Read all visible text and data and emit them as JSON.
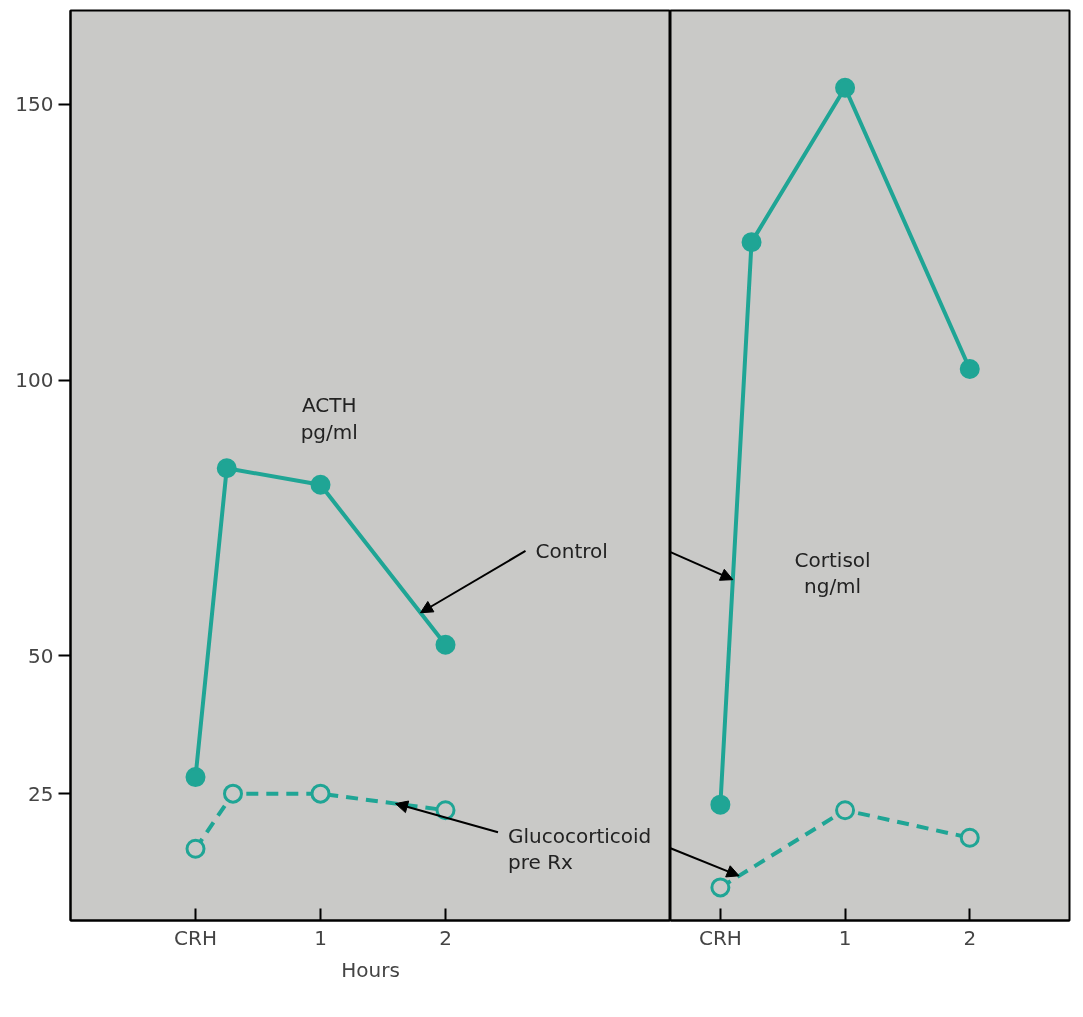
{
  "chart_data": [
    {
      "type": "line",
      "xlabel": "Hours",
      "xlim": [
        -1,
        3.8
      ],
      "ylim": [
        2,
        167
      ],
      "xticks": [
        {
          "value": 0,
          "label": "CRH"
        },
        1,
        2
      ],
      "yticks": [
        25,
        50,
        100,
        150
      ],
      "grid": false,
      "marker": "circle",
      "series": [
        {
          "color": "#1fa595",
          "line_style": "solid",
          "x": [
            0,
            0.25,
            1,
            2
          ],
          "values": [
            28,
            84,
            81,
            52
          ]
        },
        {
          "color": "#1fa595",
          "line_style": "dashed",
          "x": [
            0,
            0.3,
            1,
            2
          ],
          "values": [
            15,
            25,
            25,
            22
          ]
        }
      ],
      "annotations": [
        "ACTH\npg/ml",
        {
          "text": "Control",
          "x": 1.8,
          "y": 57.8
        },
        {
          "text": "Glucocorticoid\npre Rx",
          "x": 1.6,
          "y": 23.2
        }
      ]
    },
    {
      "type": "line",
      "xlim": [
        -0.4,
        2.8
      ],
      "ylim": [
        2,
        167
      ],
      "xticks": [
        {
          "value": 0,
          "label": "CRH"
        },
        1,
        2
      ],
      "yticks": [
        25,
        50,
        100,
        150
      ],
      "tick_labels": "x",
      "grid": false,
      "marker": "circle",
      "series": [
        {
          "color": "#1fa595",
          "line_style": "solid",
          "x": [
            0,
            0.25,
            1,
            2
          ],
          "values": [
            23,
            125,
            153,
            102
          ]
        },
        {
          "color": "#1fa595",
          "line_style": "dashed",
          "x": [
            0,
            1,
            2
          ],
          "values": [
            8,
            22,
            17
          ]
        }
      ],
      "annotations": [
        "Cortisol\nng/ml"
      ]
    }
  ]
}
